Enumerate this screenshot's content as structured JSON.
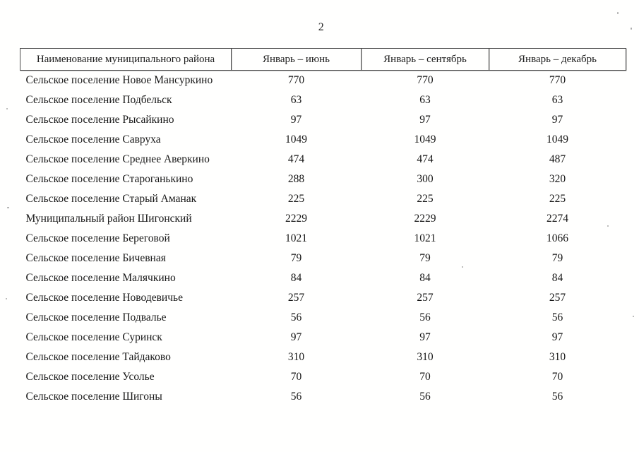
{
  "page": {
    "number": "2"
  },
  "table": {
    "headers": [
      "Наименование муниципального района",
      "Январь – июнь",
      "Январь – сентябрь",
      "Январь – декабрь"
    ],
    "rows": [
      [
        "Сельское поселение Новое Мансуркино",
        "770",
        "770",
        "770"
      ],
      [
        "Сельское поселение Подбельск",
        "63",
        "63",
        "63"
      ],
      [
        "Сельское поселение Рысайкино",
        "97",
        "97",
        "97"
      ],
      [
        "Сельское поселение Савруха",
        "1049",
        "1049",
        "1049"
      ],
      [
        "Сельское поселение Среднее Аверкино",
        "474",
        "474",
        "487"
      ],
      [
        "Сельское поселение Староганькино",
        "288",
        "300",
        "320"
      ],
      [
        "Сельское поселение Старый Аманак",
        "225",
        "225",
        "225"
      ],
      [
        "Муниципальный район Шигонский",
        "2229",
        "2229",
        "2274"
      ],
      [
        "Сельское поселение Береговой",
        "1021",
        "1021",
        "1066"
      ],
      [
        "Сельское поселение Бичевная",
        "79",
        "79",
        "79"
      ],
      [
        "Сельское поселение Малячкино",
        "84",
        "84",
        "84"
      ],
      [
        "Сельское поселение Новодевичье",
        "257",
        "257",
        "257"
      ],
      [
        "Сельское поселение Подвалье",
        "56",
        "56",
        "56"
      ],
      [
        "Сельское поселение Суринск",
        "97",
        "97",
        "97"
      ],
      [
        "Сельское поселение Тайдаково",
        "310",
        "310",
        "310"
      ],
      [
        "Сельское поселение Усолье",
        "70",
        "70",
        "70"
      ],
      [
        "Сельское поселение Шигоны",
        "56",
        "56",
        "56"
      ]
    ]
  },
  "colors": {
    "text": "#161616",
    "table_border": "#4a4a4a",
    "background": "#ffffff"
  }
}
